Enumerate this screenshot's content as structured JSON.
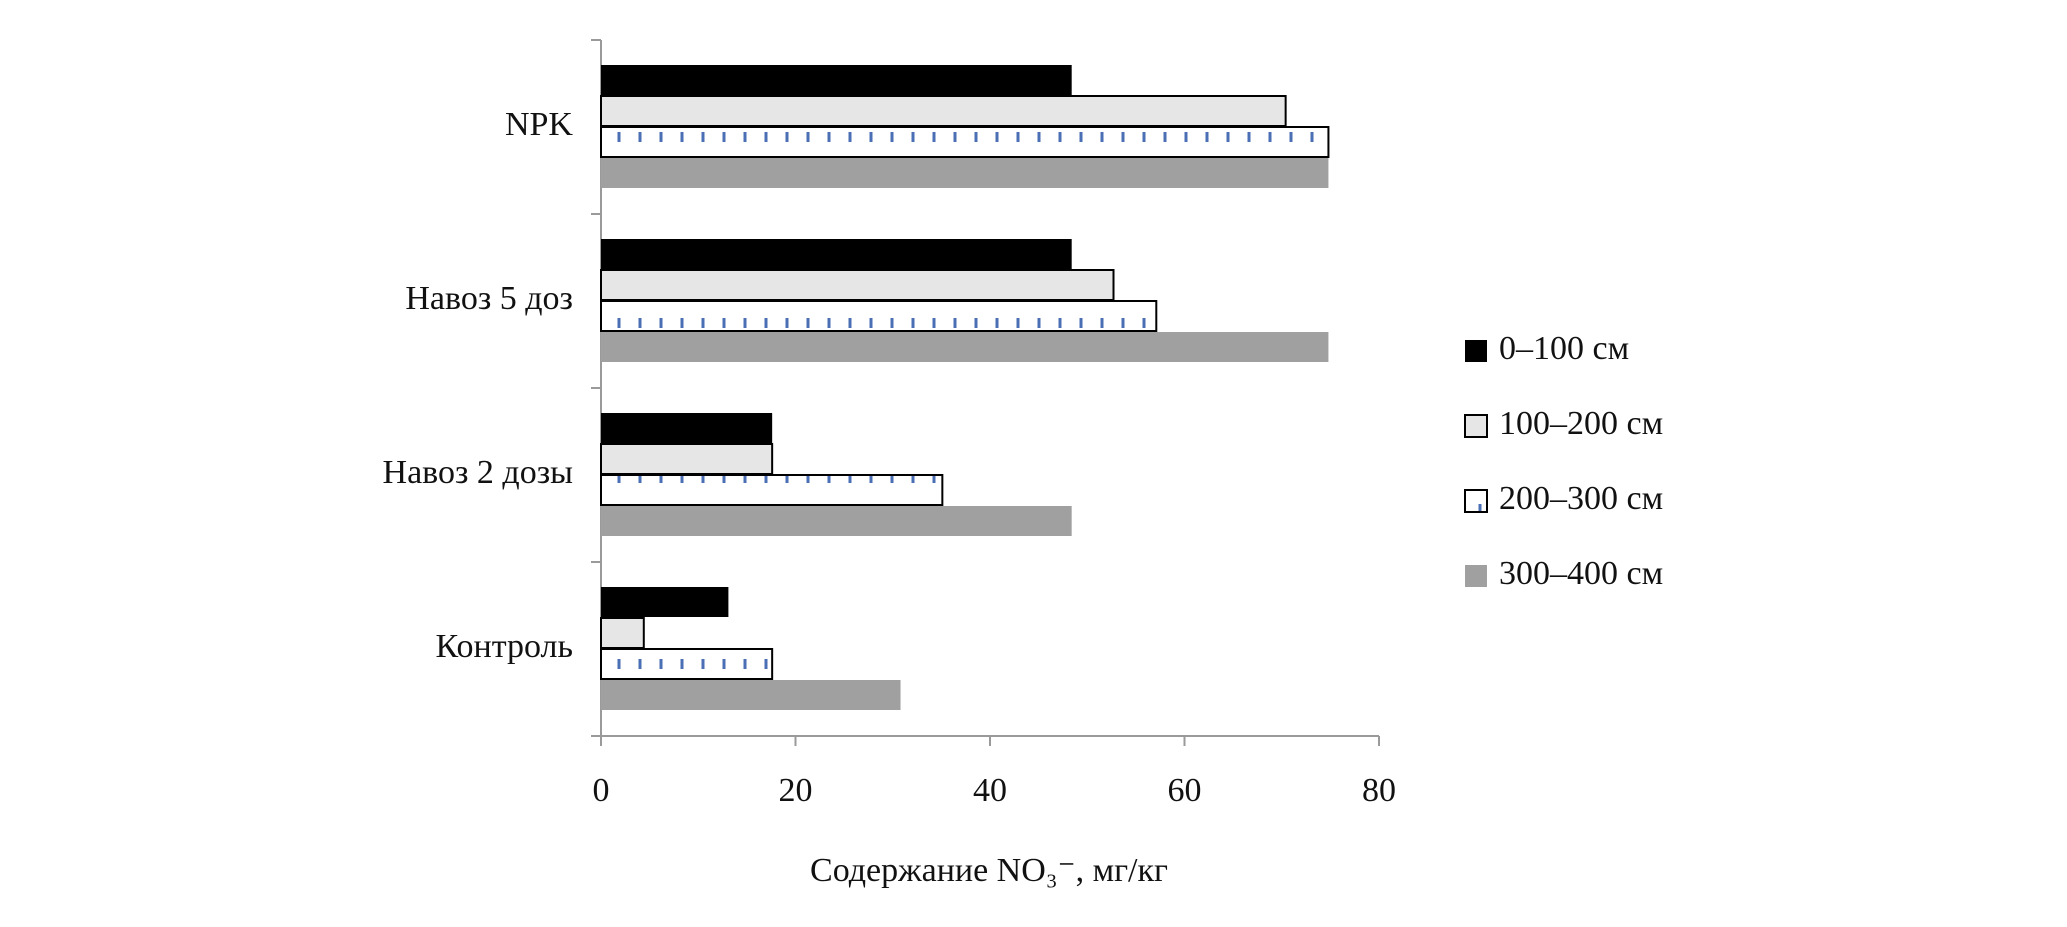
{
  "chart_data": {
    "type": "hbar",
    "x_label": "Содержание NO₃⁻, мг/кг",
    "categories": [
      "Контроль",
      "Навоз 2 дозы",
      "Навоз 5 доз",
      "NPK"
    ],
    "series": [
      {
        "name": "0–100 см",
        "color": "#000000",
        "values": [
          13.1,
          17.6,
          48.4,
          48.4
        ]
      },
      {
        "name": "100–200 см",
        "color": "#e6e6e6",
        "values": [
          4.4,
          17.6,
          52.7,
          70.4
        ]
      },
      {
        "name": "200–300 см",
        "color": "#4a6fb5",
        "hatch": true,
        "values": [
          17.6,
          35.1,
          57.1,
          74.8
        ]
      },
      {
        "name": "300–400 см",
        "color": "#a0a0a0",
        "values": [
          30.8,
          48.4,
          74.8,
          74.8
        ]
      }
    ],
    "xlim": [
      0,
      80
    ],
    "xticks": [
      0,
      20,
      40,
      60,
      80
    ],
    "legend": "right"
  }
}
